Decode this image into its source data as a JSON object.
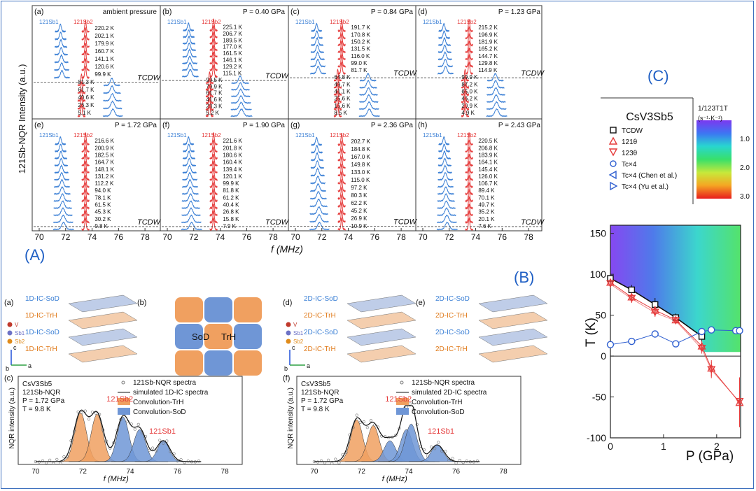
{
  "section_labels": {
    "A": "(A)",
    "B": "(B)",
    "C": "(C)"
  },
  "colors": {
    "sb1": "#3a7fd5",
    "sb2": "#e53a3a",
    "trh": "#f0a060",
    "sod": "#6f96d6",
    "frame": "#3c6fbd"
  },
  "panelA": {
    "ylabel": "121Sb-NQR Intensity (a.u.)",
    "xlabel": "f (MHz)",
    "xticks": [
      "70",
      "72",
      "74",
      "76",
      "78"
    ],
    "tcdw_label": "TCDW",
    "sb1": "121Sb1",
    "sb2": "121Sb2",
    "subpanels": [
      {
        "tag": "(a)",
        "pressure": "ambient pressure",
        "temps": [
          "220.2 K",
          "202.1 K",
          "179.9 K",
          "160.7 K",
          "141.1 K",
          "120.6 K",
          "99.9 K",
          "81.3 K",
          "61.7 K",
          "40.6 K",
          "26.3 K",
          "5.1 K"
        ]
      },
      {
        "tag": "(b)",
        "pressure": "P = 0.40 GPa",
        "temps": [
          "225.1 K",
          "206.7 K",
          "189.5 K",
          "177.0 K",
          "161.5 K",
          "146.1 K",
          "129.2 K",
          "115.1 K",
          "99.5 K",
          "79.9 K",
          "61.7 K",
          "41.6 K",
          "23.3 K",
          "5.2 K"
        ]
      },
      {
        "tag": "(c)",
        "pressure": "P = 0.84 GPa",
        "temps": [
          "191.7 K",
          "170.8 K",
          "150.2 K",
          "131.5 K",
          "116.0 K",
          "99.0 K",
          "81.7 K",
          "64.8 K",
          "49.7 K",
          "41.1 K",
          "25.6 K",
          "15.6 K",
          "8.5 K"
        ]
      },
      {
        "tag": "(d)",
        "pressure": "P = 1.23 GPa",
        "temps": [
          "215.2 K",
          "196.9 K",
          "181.9 K",
          "165.2 K",
          "144.7 K",
          "129.8 K",
          "114.9 K",
          "99.9 K",
          "87.2 K",
          "65.0 K",
          "46.2 K",
          "20.9 K",
          "4.9 K"
        ]
      },
      {
        "tag": "(e)",
        "pressure": "P = 1.72 GPa",
        "temps": [
          "216.6 K",
          "200.9 K",
          "182.5 K",
          "164.7 K",
          "148.1 K",
          "131.2 K",
          "112.2 K",
          "94.0 K",
          "78.1 K",
          "61.5 K",
          "45.3 K",
          "30.2 K",
          "9.8 K"
        ]
      },
      {
        "tag": "(f)",
        "pressure": "P = 1.90 GPa",
        "temps": [
          "221.6 K",
          "201.8 K",
          "180.6 K",
          "160.4 K",
          "139.4 K",
          "120.1 K",
          "99.9 K",
          "81.8 K",
          "61.2 K",
          "40.4 K",
          "26.8 K",
          "15.8 K",
          "7.9 K"
        ]
      },
      {
        "tag": "(g)",
        "pressure": "P = 2.36 GPa",
        "temps": [
          "202.7 K",
          "184.8 K",
          "167.0 K",
          "149.8 K",
          "133.0 K",
          "115.0 K",
          "97.2 K",
          "80.3 K",
          "62.2 K",
          "45.2 K",
          "26.9 K",
          "10.9 K"
        ]
      },
      {
        "tag": "(h)",
        "pressure": "P = 2.43 GPa",
        "temps": [
          "220.5 K",
          "206.8 K",
          "183.9 K",
          "164.1 K",
          "145.4 K",
          "126.0 K",
          "106.7 K",
          "89.4 K",
          "70.1 K",
          "49.7 K",
          "35.2 K",
          "20.1 K",
          "7.6 K"
        ]
      }
    ]
  },
  "panelB": {
    "left": {
      "tag_a": "(a)",
      "tag_b": "(b)",
      "tag_c": "(c)",
      "layers": [
        "1D-IC-SoD",
        "1D-IC-TrH",
        "1D-IC-SoD",
        "1D-IC-TrH"
      ],
      "atoms": [
        "V",
        "Sb1",
        "Sb2"
      ],
      "axes": [
        "c",
        "b",
        "a"
      ],
      "domain_sod": "SoD",
      "domain_trh": "TrH",
      "info": [
        "CsV3Sb5",
        "121Sb-NQR",
        "P = 1.72 GPa",
        "T = 9.8 K"
      ],
      "legend": [
        "121Sb-NQR spectra",
        "simulated 1D-IC spectra",
        "Convolution-TrH",
        "Convolution-SoD"
      ],
      "peak_sb2": "121Sb2",
      "peak_sb1": "121Sb1",
      "ylabel": "NQR intensity (a.u.)",
      "xlabel": "f (MHz)",
      "xticks": [
        "70",
        "72",
        "74",
        "76",
        "78"
      ]
    },
    "right": {
      "tag_d": "(d)",
      "tag_e": "(e)",
      "tag_f": "(f)",
      "layers": [
        "2D-IC-SoD",
        "2D-IC-TrH",
        "2D-IC-SoD",
        "2D-IC-TrH"
      ],
      "atoms": [
        "V",
        "Sb1",
        "Sb2"
      ],
      "axes": [
        "c",
        "b",
        "a"
      ],
      "info": [
        "CsV3Sb5",
        "121Sb-NQR",
        "P = 1.72 GPa",
        "T = 9.8 K"
      ],
      "legend": [
        "121Sb-NQR spectra",
        "simulated 2D-IC spectra",
        "Convolution-TrH",
        "Convolution-SoD"
      ],
      "peak_sb2": "121Sb2",
      "peak_sb1": "121Sb1",
      "ylabel": "NQR intensity (a.u.)",
      "xlabel": "f (MHz)",
      "xticks": [
        "70",
        "72",
        "74",
        "76",
        "78"
      ]
    }
  },
  "panelC": {
    "compound": "CsV3Sb5",
    "legend": [
      "TCDW",
      "121θ",
      "123θ",
      "Tc×4",
      "Tc×4 (Chen et al.)",
      "Tc×4 (Yu et al.)"
    ],
    "colorbar_title": "1/123T1T",
    "colorbar_unit": "(s⁻¹·K⁻¹)",
    "colorbar_ticks": [
      "1.0",
      "2.0",
      "3.0"
    ]
  },
  "chart_data": {
    "type": "scatter",
    "title": "",
    "xlabel": "P (GPa)",
    "ylabel": "T (K)",
    "xlim": [
      0,
      2.45
    ],
    "ylim": [
      -100,
      160
    ],
    "xticks": [
      "0",
      "1",
      "2"
    ],
    "yticks": [
      "150",
      "100",
      "50",
      "0",
      "-50",
      "-100"
    ],
    "series": [
      {
        "name": "TCDW",
        "x": [
          0,
          0.4,
          0.84,
          1.23,
          1.72
        ],
        "y": [
          95,
          81,
          63,
          47,
          24
        ],
        "yerr": [
          4,
          6,
          8,
          5,
          8
        ]
      },
      {
        "name": "121θ",
        "x": [
          0,
          0.4,
          0.84,
          1.23,
          1.72,
          1.9,
          2.43
        ],
        "y": [
          90,
          72,
          56,
          44,
          12,
          -15,
          -57
        ],
        "yerr": [
          3,
          5,
          5,
          4,
          6,
          10,
          30
        ]
      },
      {
        "name": "123θ",
        "x": [
          0,
          0.4,
          0.84,
          1.23,
          1.72,
          1.9,
          2.43
        ],
        "y": [
          88,
          70,
          53,
          43,
          9,
          -17,
          -56
        ],
        "yerr": [
          3,
          5,
          5,
          4,
          6,
          10,
          30
        ]
      },
      {
        "name": "Tc×4",
        "x": [
          0,
          0.4,
          0.84,
          1.23,
          1.72,
          1.9,
          2.36,
          2.43
        ],
        "y": [
          14,
          18,
          27,
          15,
          30,
          32,
          31,
          31
        ]
      }
    ]
  }
}
